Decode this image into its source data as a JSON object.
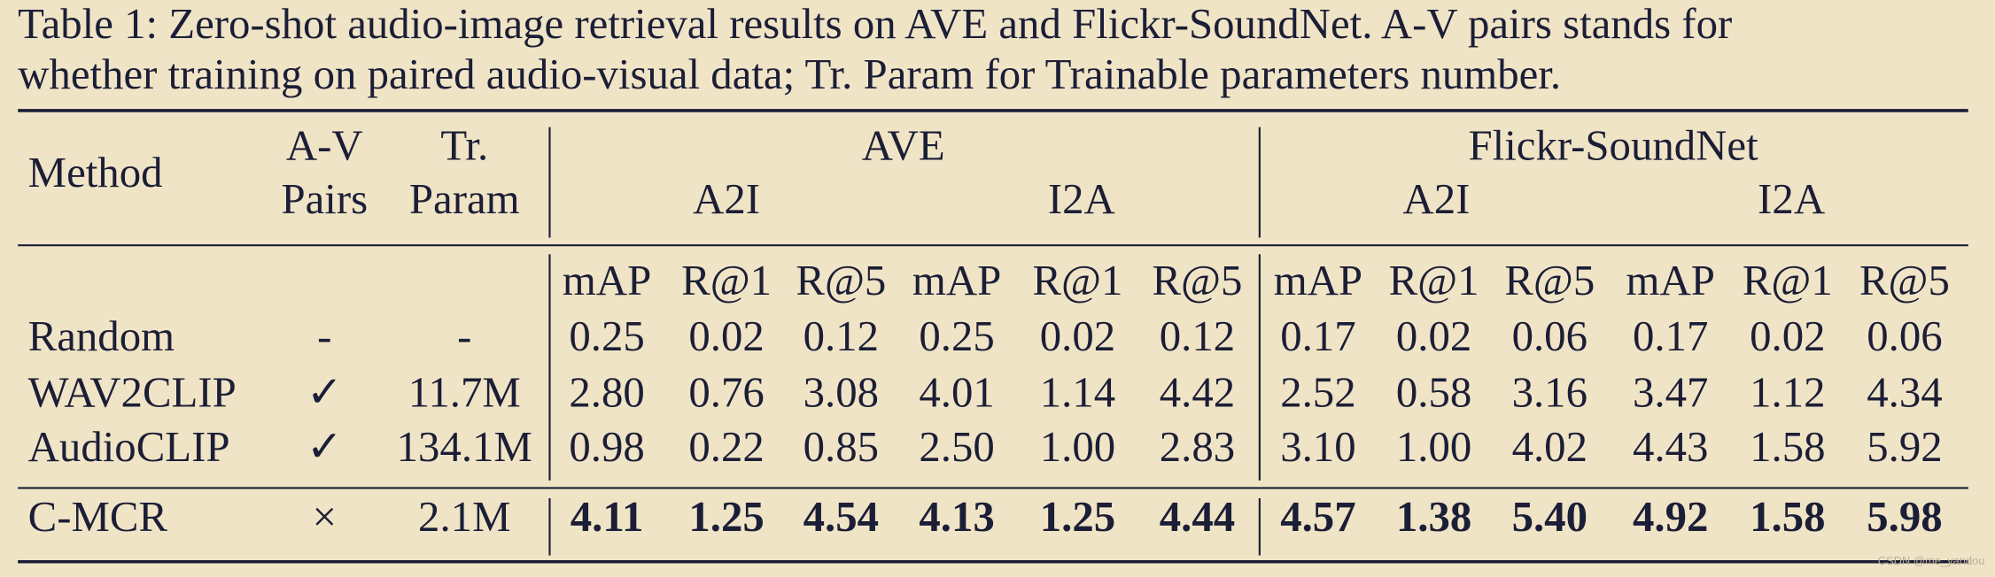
{
  "caption": [
    "Table 1: Zero-shot audio-image retrieval results on AVE and Flickr-SoundNet. A-V pairs stands for",
    "whether training on paired audio-visual data; Tr. Param for Trainable parameters number."
  ],
  "table": {
    "header": {
      "method": "Method",
      "av": [
        "A-V",
        "Pairs"
      ],
      "param": [
        "Tr.",
        "Param"
      ],
      "groups": [
        {
          "name": "AVE",
          "subs": [
            "A2I",
            "I2A"
          ]
        },
        {
          "name": "Flickr-SoundNet",
          "subs": [
            "A2I",
            "I2A"
          ]
        }
      ]
    },
    "metrics": [
      "mAP",
      "R@1",
      "R@5",
      "mAP",
      "R@1",
      "R@5",
      "mAP",
      "R@1",
      "R@5",
      "mAP",
      "R@1",
      "R@5"
    ],
    "rows": [
      {
        "method": "Random",
        "av": "-",
        "param": "-",
        "values": [
          "0.25",
          "0.02",
          "0.12",
          "0.25",
          "0.02",
          "0.12",
          "0.17",
          "0.02",
          "0.06",
          "0.17",
          "0.02",
          "0.06"
        ]
      },
      {
        "method": "WAV2CLIP",
        "av": "✓",
        "param": "11.7M",
        "values": [
          "2.80",
          "0.76",
          "3.08",
          "4.01",
          "1.14",
          "4.42",
          "2.52",
          "0.58",
          "3.16",
          "3.47",
          "1.12",
          "4.34"
        ]
      },
      {
        "method": "AudioCLIP",
        "av": "✓",
        "param": "134.1M",
        "values": [
          "0.98",
          "0.22",
          "0.85",
          "2.50",
          "1.00",
          "2.83",
          "3.10",
          "1.00",
          "4.02",
          "4.43",
          "1.58",
          "5.92"
        ]
      },
      {
        "method": "C-MCR",
        "av": "×",
        "param": "2.1M",
        "values": [
          "4.11",
          "1.25",
          "4.54",
          "4.13",
          "1.25",
          "4.44",
          "4.57",
          "1.38",
          "5.40",
          "4.92",
          "1.58",
          "5.98"
        ]
      }
    ]
  },
  "watermark": "CSDN @me_yandou"
}
